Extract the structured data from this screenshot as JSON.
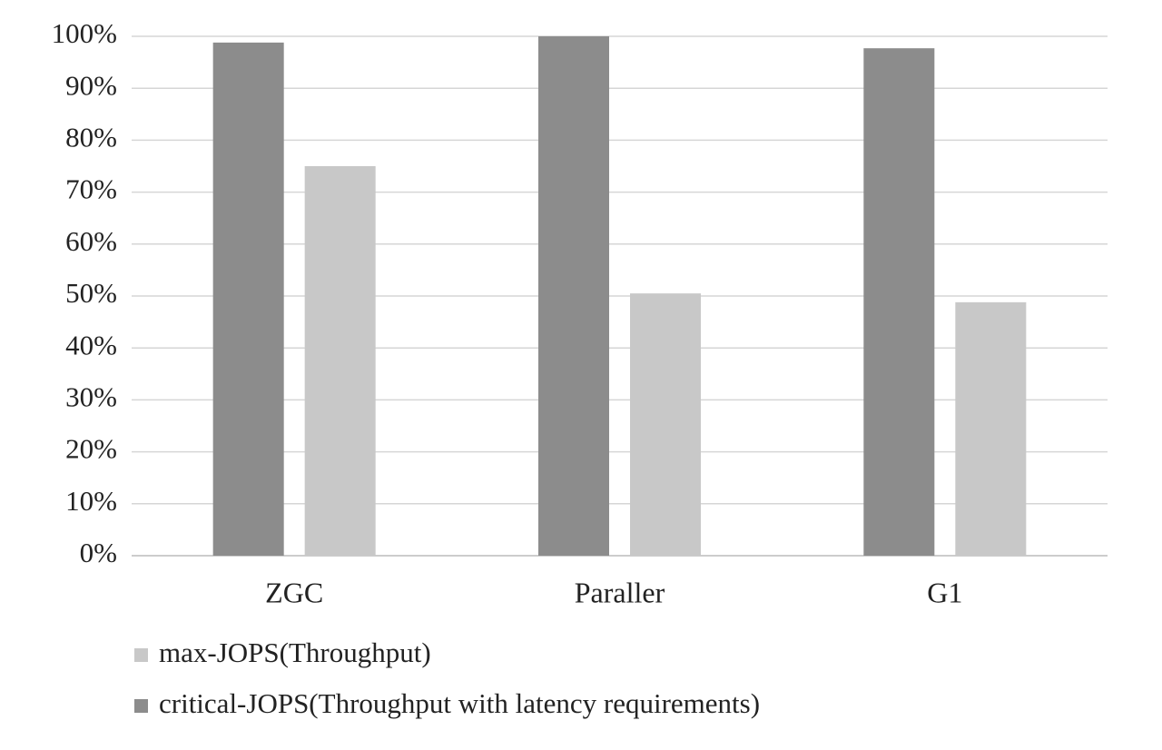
{
  "chart_data": {
    "type": "bar",
    "categories": [
      "ZGC",
      "Paraller",
      "G1"
    ],
    "series": [
      {
        "name": "critical-JOPS(Throughput with latency requirements)",
        "color": "#8c8c8c",
        "values": [
          98.8,
          100,
          97.7
        ]
      },
      {
        "name": "max-JOPS(Throughput)",
        "color": "#c8c8c8",
        "values": [
          75,
          50.5,
          48.8
        ]
      }
    ],
    "ylim": [
      0,
      100
    ],
    "yticks": [
      {
        "value": 0,
        "label": "0%"
      },
      {
        "value": 10,
        "label": "10%"
      },
      {
        "value": 20,
        "label": "20%"
      },
      {
        "value": 30,
        "label": "30%"
      },
      {
        "value": 40,
        "label": "40%"
      },
      {
        "value": 50,
        "label": "50%"
      },
      {
        "value": 60,
        "label": "60%"
      },
      {
        "value": 70,
        "label": "70%"
      },
      {
        "value": 80,
        "label": "80%"
      },
      {
        "value": 90,
        "label": "90%"
      },
      {
        "value": 100,
        "label": "100%"
      }
    ],
    "grid": true,
    "legend": "bottom-left"
  }
}
